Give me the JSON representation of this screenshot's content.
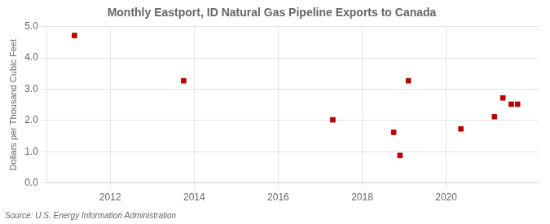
{
  "chart_data": {
    "type": "scatter",
    "title": "Monthly Eastport, ID Natural Gas Pipeline Exports to Canada",
    "ylabel": "Dollars per Thousand Cubic Feet",
    "annotation": "Source: U.S. Energy Information Administration",
    "x": [
      2011.15,
      2013.75,
      2017.3,
      2018.75,
      2018.9,
      2019.1,
      2020.35,
      2021.15,
      2021.35,
      2021.55,
      2021.7
    ],
    "values": [
      4.72,
      3.27,
      2.02,
      1.62,
      0.88,
      3.27,
      1.73,
      2.12,
      2.72,
      2.52,
      2.52
    ],
    "color": "#bb0000",
    "marker": "square",
    "xlim": [
      2010.5,
      2022.2
    ],
    "xticks": [
      2012,
      2014,
      2016,
      2018,
      2020
    ],
    "ylim": [
      0.0,
      5.0
    ],
    "yticks": [
      {
        "value": 0.0,
        "label": "0.0"
      },
      {
        "value": 1.0,
        "label": "1.0"
      },
      {
        "value": 2.0,
        "label": "2.0"
      },
      {
        "value": 3.0,
        "label": "3.0"
      },
      {
        "value": 4.0,
        "label": "4.0"
      },
      {
        "value": 5.0,
        "label": "5.0"
      }
    ],
    "grid": true
  }
}
